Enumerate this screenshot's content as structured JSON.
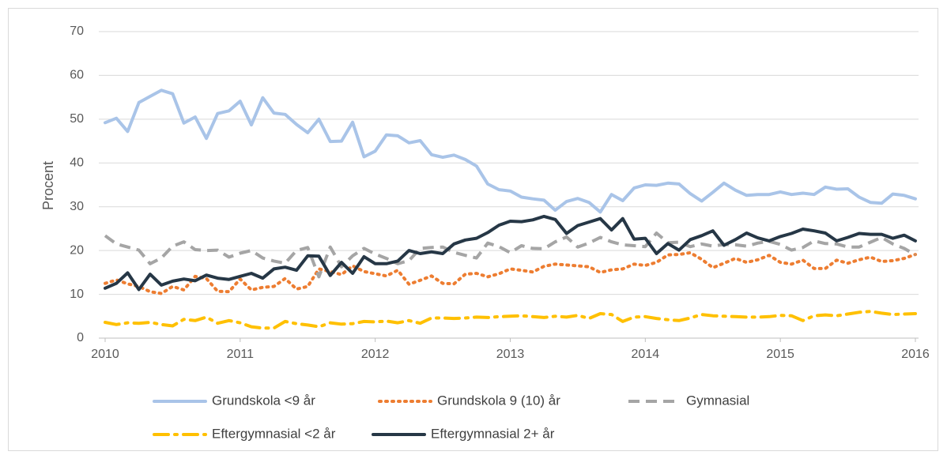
{
  "chart_data": {
    "type": "line",
    "y_label": "Procent",
    "xlim": [
      2010,
      2016
    ],
    "xticks": [
      2010,
      2011,
      2012,
      2013,
      2014,
      2015,
      2016
    ],
    "ylim": [
      0,
      70
    ],
    "yticks": [
      0,
      10,
      20,
      30,
      40,
      50,
      60,
      70
    ],
    "grid": true,
    "x": [
      2010,
      2010.083,
      2010.167,
      2010.25,
      2010.333,
      2010.417,
      2010.5,
      2010.583,
      2010.667,
      2010.75,
      2010.833,
      2010.917,
      2011,
      2011.083,
      2011.167,
      2011.25,
      2011.333,
      2011.417,
      2011.5,
      2011.583,
      2011.667,
      2011.75,
      2011.833,
      2011.917,
      2012,
      2012.083,
      2012.167,
      2012.25,
      2012.333,
      2012.417,
      2012.5,
      2012.583,
      2012.667,
      2012.75,
      2012.833,
      2012.917,
      2013,
      2013.083,
      2013.167,
      2013.25,
      2013.333,
      2013.417,
      2013.5,
      2013.583,
      2013.667,
      2013.75,
      2013.833,
      2013.917,
      2014,
      2014.083,
      2014.167,
      2014.25,
      2014.333,
      2014.417,
      2014.5,
      2014.583,
      2014.667,
      2014.75,
      2014.833,
      2014.917,
      2015,
      2015.083,
      2015.167,
      2015.25,
      2015.333,
      2015.417,
      2015.5,
      2015.583,
      2015.667,
      2015.75,
      2015.833,
      2015.917,
      2016
    ],
    "series": [
      {
        "name": "Grundskola <9 år",
        "color": "#a9c4e8",
        "dash": "solid",
        "values": [
          49.2,
          50.2,
          47.2,
          53.8,
          55.2,
          56.6,
          55.8,
          49.1,
          50.5,
          45.6,
          51.3,
          51.9,
          54.1,
          48.7,
          54.9,
          51.4,
          51.1,
          48.8,
          46.9,
          50.0,
          44.9,
          45.0,
          49.3,
          41.4,
          42.7,
          46.4,
          46.2,
          44.6,
          45.1,
          41.9,
          41.3,
          41.8,
          40.8,
          39.3,
          35.2,
          33.9,
          33.6,
          32.2,
          31.8,
          31.5,
          29.2,
          31.2,
          31.9,
          31.0,
          28.8,
          32.8,
          31.4,
          34.3,
          35.0,
          34.9,
          35.4,
          35.2,
          33.0,
          31.3,
          33.3,
          35.4,
          33.8,
          32.6,
          32.8,
          32.8,
          33.4,
          32.8,
          33.1,
          32.8,
          34.5,
          34.0,
          34.1,
          32.2,
          31.0,
          30.8,
          32.9,
          32.6,
          31.8
        ]
      },
      {
        "name": "Grundskola 9 (10) år",
        "color": "#ed7d31",
        "dash": "dot",
        "values": [
          12.5,
          13.3,
          12.4,
          11.8,
          10.6,
          10.2,
          11.8,
          11.0,
          14.1,
          13.6,
          10.7,
          10.6,
          13.5,
          11.0,
          11.6,
          11.8,
          13.6,
          11.2,
          11.8,
          15.8,
          15.2,
          14.5,
          16.5,
          15.2,
          14.7,
          14.2,
          15.5,
          12.3,
          13.2,
          14.2,
          12.5,
          12.4,
          14.6,
          14.8,
          14.0,
          14.7,
          15.8,
          15.5,
          15.1,
          16.4,
          16.9,
          16.7,
          16.5,
          16.3,
          15.0,
          15.6,
          15.8,
          16.9,
          16.6,
          17.3,
          19.0,
          19.1,
          19.5,
          18.0,
          16.1,
          17.1,
          18.2,
          17.3,
          17.9,
          18.9,
          17.3,
          16.9,
          17.8,
          15.9,
          15.9,
          17.8,
          17.1,
          17.9,
          18.5,
          17.5,
          17.7,
          18.2,
          19.1
        ]
      },
      {
        "name": "Gymnasial",
        "color": "#a5a5a5",
        "dash": "dash",
        "values": [
          23.4,
          21.5,
          20.8,
          20.1,
          17.0,
          18.3,
          21.0,
          22.0,
          20.2,
          20.0,
          20.1,
          18.5,
          19.4,
          20.0,
          18.3,
          17.6,
          17.1,
          20.0,
          20.7,
          14.0,
          20.8,
          16.3,
          18.8,
          20.5,
          19.2,
          18.2,
          17.0,
          17.7,
          20.5,
          20.7,
          20.8,
          19.6,
          18.9,
          18.3,
          21.7,
          20.9,
          19.5,
          21.1,
          20.5,
          20.4,
          22.0,
          23.1,
          20.8,
          21.7,
          23.0,
          22.0,
          21.3,
          21.1,
          20.9,
          24.0,
          21.8,
          21.9,
          20.9,
          21.5,
          21.0,
          21.4,
          21.3,
          21.0,
          21.7,
          22.1,
          21.4,
          20.1,
          20.7,
          22.2,
          21.6,
          21.5,
          20.8,
          20.8,
          21.9,
          23.0,
          21.5,
          20.5,
          19.0
        ]
      },
      {
        "name": "Eftergymnasial <2 år",
        "color": "#ffc000",
        "dash": "dashdot",
        "values": [
          3.6,
          3.1,
          3.5,
          3.4,
          3.6,
          3.1,
          2.8,
          4.3,
          4.0,
          4.8,
          3.4,
          4.0,
          3.5,
          2.6,
          2.3,
          2.3,
          3.8,
          3.3,
          3.0,
          2.6,
          3.5,
          3.2,
          3.3,
          3.8,
          3.7,
          3.9,
          3.5,
          4.0,
          3.4,
          4.6,
          4.6,
          4.5,
          4.6,
          4.8,
          4.7,
          4.9,
          5.0,
          5.1,
          4.9,
          4.7,
          5.0,
          4.8,
          5.2,
          4.5,
          5.6,
          5.4,
          3.8,
          4.8,
          4.9,
          4.5,
          4.2,
          4.0,
          4.6,
          5.4,
          5.1,
          5.0,
          4.9,
          4.8,
          4.8,
          4.9,
          5.2,
          5.1,
          4.0,
          5.1,
          5.3,
          5.1,
          5.5,
          5.9,
          6.1,
          5.7,
          5.4,
          5.5,
          5.6
        ]
      },
      {
        "name": "Eftergymnasial 2+ år",
        "color": "#263746",
        "dash": "solid",
        "values": [
          11.4,
          12.5,
          14.9,
          11.1,
          14.6,
          12.1,
          13.0,
          13.5,
          13.1,
          14.4,
          13.7,
          13.4,
          14.1,
          14.8,
          13.7,
          15.8,
          16.2,
          15.5,
          18.8,
          18.7,
          14.3,
          17.3,
          14.8,
          18.6,
          17.0,
          17.0,
          17.6,
          20.0,
          19.3,
          19.7,
          19.3,
          21.5,
          22.4,
          22.8,
          24.1,
          25.8,
          26.7,
          26.6,
          27.0,
          27.8,
          27.1,
          23.9,
          25.7,
          26.5,
          27.3,
          24.7,
          27.3,
          22.6,
          22.8,
          19.3,
          21.6,
          20.1,
          22.5,
          23.4,
          24.5,
          21.2,
          22.5,
          24.0,
          22.9,
          22.2,
          23.2,
          23.9,
          24.9,
          24.5,
          24.0,
          22.2,
          23.0,
          23.9,
          23.7,
          23.7,
          22.8,
          23.5,
          22.2
        ]
      }
    ]
  }
}
